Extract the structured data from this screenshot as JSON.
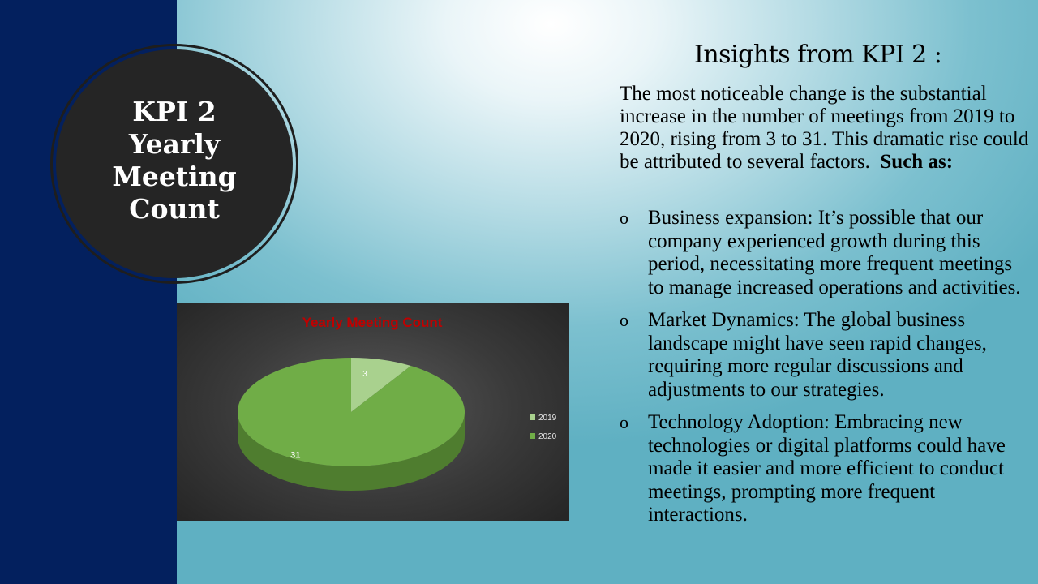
{
  "slide": {
    "circle_title_lines": [
      "KPI 2",
      "Yearly",
      "Meeting",
      "Count"
    ],
    "insights_title": "Insights from KPI 2 :",
    "intro_text": "The most noticeable change is the substantial increase in the number of meetings from 2019 to 2020, rising from 3 to 31. This dramatic rise could be attributed to several factors.",
    "intro_bold": "Such as:",
    "bullet_marker": "o",
    "bullets": [
      "Business expansion: It’s possible that our company experienced growth during this period, necessitating more frequent meetings to manage increased operations and activities.",
      "Market Dynamics: The global business landscape might have seen rapid changes, requiring more regular discussions  and adjustments to our strategies.",
      "Technology Adoption: Embracing new technologies or digital platforms could have made it easier and more efficient to conduct meetings, prompting more frequent interactions."
    ]
  },
  "colors": {
    "left_band": "#03205e",
    "circle": "#252525",
    "chart_title": "#c00000",
    "slice_2019": "#a9d18e",
    "slice_2020": "#70ad47"
  },
  "chart_data": {
    "type": "pie",
    "title": "Yearly  Meeting  Count",
    "categories": [
      "2019",
      "2020"
    ],
    "values": [
      3,
      31
    ],
    "data_labels": [
      "3",
      "31"
    ],
    "legend": "right",
    "style": "3d"
  }
}
